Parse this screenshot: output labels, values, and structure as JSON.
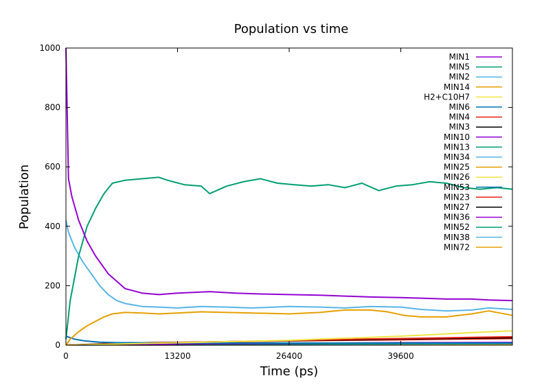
{
  "chart_data": {
    "type": "line",
    "title": "Population vs time",
    "xlabel": "Time (ps)",
    "ylabel": "Population",
    "xlim": [
      0,
      52800
    ],
    "ylim": [
      0,
      1000
    ],
    "xticks": [
      0,
      13200,
      26400,
      39600
    ],
    "yticks": [
      0,
      200,
      400,
      600,
      800,
      1000
    ],
    "grid": false,
    "legend_position": "top-right",
    "series": [
      {
        "name": "MIN1",
        "color": "#9400d3",
        "x": [
          0,
          300,
          700,
          1500,
          2500,
          3500,
          5000,
          7000,
          9000,
          11000,
          13200,
          17000,
          20000,
          23000,
          26400,
          30000,
          33000,
          36000,
          39600,
          42000,
          45000,
          48000,
          50000,
          52800
        ],
        "y": [
          1000,
          560,
          500,
          420,
          350,
          300,
          240,
          190,
          175,
          170,
          175,
          180,
          175,
          172,
          170,
          168,
          165,
          162,
          160,
          158,
          155,
          155,
          152,
          150
        ]
      },
      {
        "name": "MIN5",
        "color": "#009e73",
        "x": [
          0,
          500,
          1500,
          2500,
          3500,
          4500,
          5500,
          7000,
          9000,
          11000,
          12000,
          14000,
          16000,
          17000,
          19000,
          21000,
          23000,
          25000,
          27000,
          29000,
          31000,
          33000,
          35000,
          37000,
          39000,
          41000,
          43000,
          45000,
          47000,
          49000,
          51000,
          52800
        ],
        "y": [
          20,
          150,
          300,
          400,
          460,
          510,
          545,
          555,
          560,
          565,
          555,
          540,
          535,
          510,
          535,
          550,
          560,
          545,
          540,
          535,
          540,
          530,
          545,
          520,
          535,
          540,
          550,
          545,
          530,
          525,
          530,
          525
        ]
      },
      {
        "name": "MIN2",
        "color": "#56b4e9",
        "x": [
          0,
          300,
          1000,
          2000,
          3000,
          4000,
          5000,
          6000,
          7000,
          8000,
          9000,
          11000,
          13200,
          16000,
          19000,
          22000,
          26400,
          30000,
          33000,
          36000,
          39600,
          42000,
          45000,
          48000,
          50000,
          52800
        ],
        "y": [
          420,
          380,
          330,
          280,
          240,
          200,
          170,
          150,
          140,
          135,
          130,
          128,
          125,
          130,
          128,
          125,
          130,
          128,
          125,
          130,
          128,
          120,
          115,
          118,
          125,
          120
        ]
      },
      {
        "name": "MIN14",
        "color": "#e69f00",
        "x": [
          0,
          500,
          1500,
          2500,
          3500,
          4500,
          5500,
          7000,
          9000,
          11000,
          13200,
          16000,
          19000,
          22000,
          26400,
          30000,
          33000,
          36000,
          38000,
          40000,
          42000,
          45000,
          48000,
          50000,
          52800
        ],
        "y": [
          0,
          20,
          45,
          65,
          80,
          95,
          105,
          110,
          108,
          105,
          108,
          112,
          110,
          108,
          105,
          110,
          118,
          118,
          112,
          100,
          95,
          95,
          105,
          115,
          100
        ]
      },
      {
        "name": "H2+C10H7",
        "color": "#f0e442",
        "x": [
          0,
          5000,
          10000,
          15000,
          20000,
          26400,
          30000,
          35000,
          39600,
          44000,
          48000,
          52800
        ],
        "y": [
          0,
          3,
          6,
          9,
          12,
          16,
          20,
          25,
          30,
          36,
          42,
          48
        ]
      },
      {
        "name": "MIN6",
        "color": "#0072b2",
        "x": [
          0,
          500,
          1000,
          2000,
          3000,
          4000,
          6000,
          8000,
          10000,
          13200,
          20000,
          26400,
          39600,
          52800
        ],
        "y": [
          30,
          25,
          20,
          15,
          12,
          10,
          8,
          8,
          7,
          7,
          7,
          7,
          7,
          7
        ]
      },
      {
        "name": "MIN4",
        "color": "#e51e10",
        "x": [
          0,
          5000,
          10000,
          15000,
          20000,
          26400,
          30000,
          35000,
          39600,
          44000,
          48000,
          52800
        ],
        "y": [
          0,
          4,
          7,
          10,
          12,
          15,
          17,
          20,
          22,
          24,
          26,
          28
        ]
      },
      {
        "name": "MIN3",
        "color": "#000000",
        "x": [
          0,
          5000,
          10000,
          15000,
          20000,
          26400,
          30000,
          35000,
          39600,
          44000,
          48000,
          52800
        ],
        "y": [
          0,
          5,
          8,
          10,
          12,
          14,
          16,
          18,
          20,
          22,
          23,
          25
        ]
      },
      {
        "name": "MIN10",
        "color": "#9400d3",
        "x": [
          0,
          13200,
          26400,
          39600,
          52800
        ],
        "y": [
          0,
          4,
          6,
          8,
          9
        ]
      },
      {
        "name": "MIN13",
        "color": "#009e73",
        "x": [
          0,
          13200,
          26400,
          39600,
          52800
        ],
        "y": [
          0,
          3,
          4,
          5,
          6
        ]
      },
      {
        "name": "MIN34",
        "color": "#56b4e9",
        "x": [
          0,
          13200,
          26400,
          39600,
          52800
        ],
        "y": [
          0,
          2,
          3,
          4,
          5
        ]
      },
      {
        "name": "MIN25",
        "color": "#e69f00",
        "x": [
          0,
          13200,
          26400,
          39600,
          52800
        ],
        "y": [
          0,
          2,
          3,
          4,
          4
        ]
      },
      {
        "name": "MIN26",
        "color": "#f0e442",
        "x": [
          0,
          13200,
          26400,
          39600,
          52800
        ],
        "y": [
          0,
          1,
          2,
          3,
          3
        ]
      },
      {
        "name": "MIN53",
        "color": "#0072b2",
        "x": [
          0,
          13200,
          26400,
          39600,
          52800
        ],
        "y": [
          0,
          2,
          3,
          3,
          4
        ]
      },
      {
        "name": "MIN23",
        "color": "#e51e10",
        "x": [
          0,
          13200,
          26400,
          39600,
          52800
        ],
        "y": [
          0,
          8,
          14,
          18,
          22
        ]
      },
      {
        "name": "MIN27",
        "color": "#000000",
        "x": [
          0,
          13200,
          26400,
          39600,
          52800
        ],
        "y": [
          0,
          1,
          2,
          2,
          3
        ]
      },
      {
        "name": "MIN36",
        "color": "#9400d3",
        "x": [
          0,
          13200,
          26400,
          39600,
          52800
        ],
        "y": [
          0,
          1,
          2,
          2,
          2
        ]
      },
      {
        "name": "MIN52",
        "color": "#009e73",
        "x": [
          0,
          13200,
          26400,
          39600,
          52800
        ],
        "y": [
          0,
          1,
          1,
          2,
          2
        ]
      },
      {
        "name": "MIN38",
        "color": "#56b4e9",
        "x": [
          0,
          13200,
          26400,
          39600,
          52800
        ],
        "y": [
          0,
          1,
          1,
          1,
          2
        ]
      },
      {
        "name": "MIN72",
        "color": "#e69f00",
        "x": [
          0,
          13200,
          26400,
          39600,
          52800
        ],
        "y": [
          0,
          1,
          1,
          1,
          1
        ]
      }
    ]
  }
}
